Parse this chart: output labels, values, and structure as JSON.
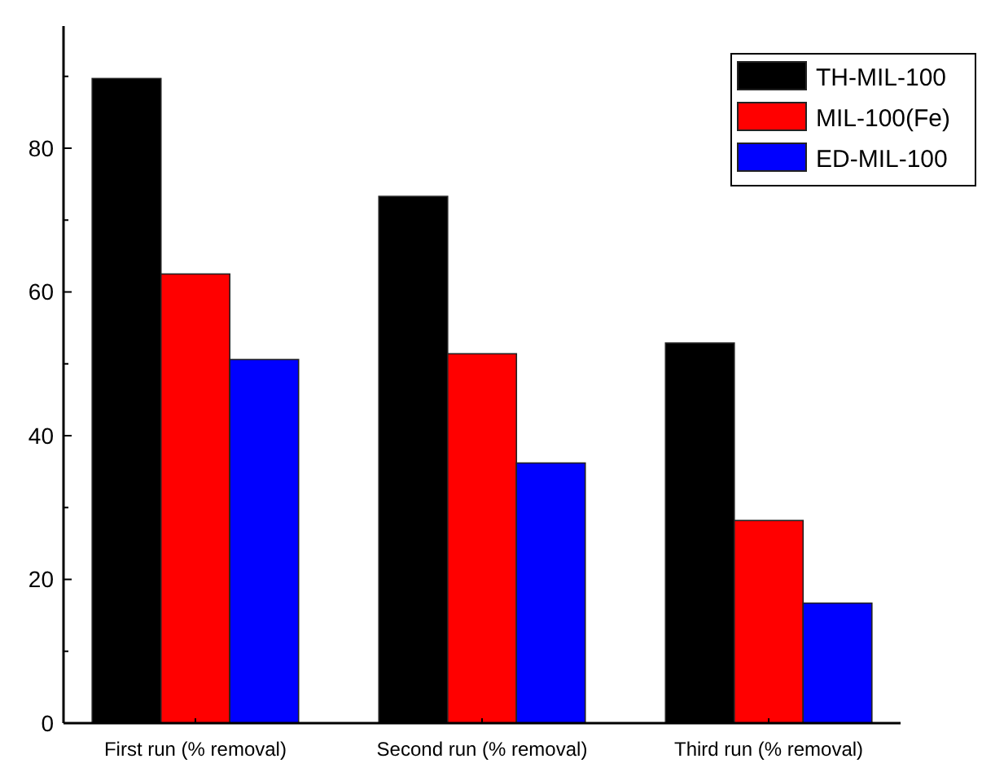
{
  "chart_data": {
    "type": "bar",
    "categories": [
      "First run (% removal)",
      "Second run (% removal)",
      "Third run (% removal)"
    ],
    "series": [
      {
        "name": "TH-MIL-100",
        "color": "#000000",
        "values": [
          89.7,
          73.3,
          52.9
        ]
      },
      {
        "name": "MIL-100(Fe)",
        "color": "#ff0000",
        "values": [
          62.5,
          51.4,
          28.2
        ]
      },
      {
        "name": "ED-MIL-100",
        "color": "#0000ff",
        "values": [
          50.6,
          36.2,
          16.7
        ]
      }
    ],
    "ylim": [
      0,
      97
    ],
    "yticks": [
      0,
      {
        "value": 10,
        "label": null
      },
      20,
      {
        "value": 30,
        "label": null
      },
      40,
      {
        "value": 50,
        "label": null
      },
      60,
      {
        "value": 70,
        "label": null
      },
      80,
      {
        "value": 90,
        "label": null
      }
    ],
    "legend": "top right",
    "grid": false
  }
}
